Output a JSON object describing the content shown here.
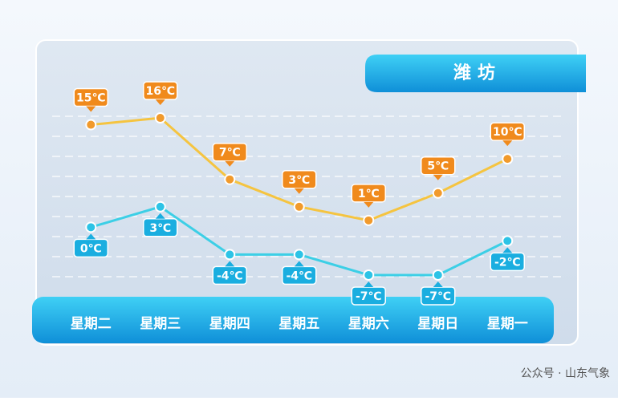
{
  "chart_data": {
    "type": "line",
    "title": "潍坊",
    "categories": [
      "星期二",
      "星期三",
      "星期四",
      "星期五",
      "星期六",
      "星期日",
      "星期一"
    ],
    "series": [
      {
        "color": "#f5c440",
        "point_color": "#f19a2c",
        "label_color": "#f08a1c",
        "label_position": "above",
        "values": [
          15,
          16,
          7,
          3,
          1,
          5,
          10
        ],
        "value_labels": [
          "15℃",
          "16℃",
          "7℃",
          "3℃",
          "1℃",
          "5℃",
          "10℃"
        ]
      },
      {
        "color": "#3ccfe6",
        "point_color": "#2cc3e6",
        "label_color": "#1aaee0",
        "label_position": "below",
        "values": [
          0,
          3,
          -4,
          -4,
          -7,
          -7,
          -2
        ],
        "value_labels": [
          "0℃",
          "3℃",
          "-4℃",
          "-4℃",
          "-7℃",
          "-7℃",
          "-2℃"
        ]
      }
    ],
    "ylim": [
      -9,
      18
    ]
  },
  "watermark": "公众号 · 山东气象"
}
